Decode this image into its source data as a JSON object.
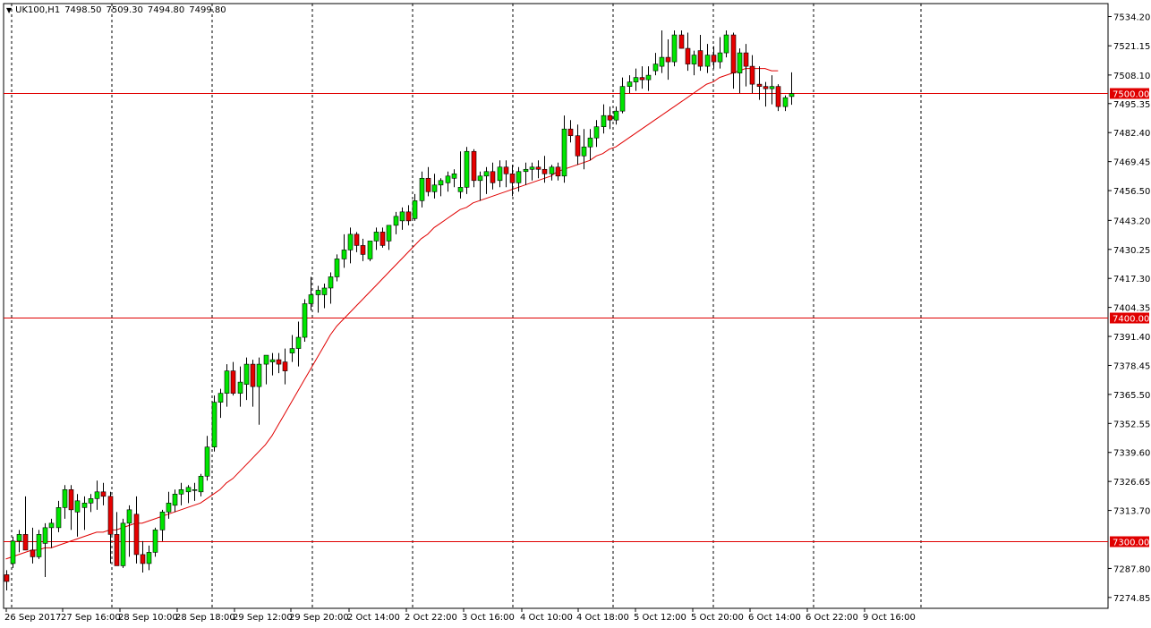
{
  "header": {
    "symbol_timeframe": "UK100,H1",
    "ohlc": [
      "7498.50",
      "7509.30",
      "7494.80",
      "7499.80"
    ]
  },
  "colors": {
    "background": "#ffffff",
    "bull": "#00e600",
    "bear": "#e60000",
    "candle_outline": "#000000",
    "moving_average": "#e00000",
    "hline": "#e00000",
    "hline_label_bg": "#e00000",
    "hline_label_text": "#ffffff",
    "grid": "#000000"
  },
  "price_axis": {
    "ticks": [
      "7534.20",
      "7521.15",
      "7508.10",
      "7495.35",
      "7482.40",
      "7469.45",
      "7456.50",
      "7443.20",
      "7430.25",
      "7417.30",
      "7404.35",
      "7391.40",
      "7378.45",
      "7365.50",
      "7352.55",
      "7339.60",
      "7326.65",
      "7313.70",
      "7287.80",
      "7274.85"
    ]
  },
  "time_axis": {
    "labels": [
      "26 Sep 2017",
      "27 Sep 16:00",
      "28 Sep 10:00",
      "28 Sep 18:00",
      "29 Sep 12:00",
      "29 Sep 20:00",
      "2 Oct 14:00",
      "2 Oct 22:00",
      "3 Oct 16:00",
      "4 Oct 10:00",
      "4 Oct 18:00",
      "5 Oct 12:00",
      "5 Oct 20:00",
      "6 Oct 14:00",
      "6 Oct 22:00",
      "9 Oct 16:00"
    ]
  },
  "chart_data": {
    "type": "candlestick",
    "symbol": "UK100",
    "timeframe": "H1",
    "ylim": [
      7270,
      7540
    ],
    "horizontal_levels": [
      "7500.00",
      "7400.00",
      "7300.00"
    ],
    "candles": [
      [
        7285,
        7287,
        7278,
        7282
      ],
      [
        7290,
        7302,
        7288,
        7300
      ],
      [
        7300,
        7305,
        7295,
        7303
      ],
      [
        7303,
        7320,
        7296,
        7296
      ],
      [
        7296,
        7306,
        7290,
        7293
      ],
      [
        7293,
        7305,
        7292,
        7303
      ],
      [
        7299,
        7308,
        7284,
        7306
      ],
      [
        7306,
        7310,
        7297,
        7308
      ],
      [
        7306,
        7318,
        7304,
        7315
      ],
      [
        7315,
        7325,
        7310,
        7323
      ],
      [
        7323,
        7325,
        7305,
        7314
      ],
      [
        7313,
        7321,
        7302,
        7318
      ],
      [
        7315,
        7320,
        7305,
        7317
      ],
      [
        7317,
        7321,
        7313,
        7319
      ],
      [
        7319,
        7327,
        7314,
        7322
      ],
      [
        7322,
        7326,
        7316,
        7320
      ],
      [
        7320,
        7322,
        7290,
        7303
      ],
      [
        7303,
        7313,
        7290,
        7289
      ],
      [
        7289,
        7310,
        7288,
        7308
      ],
      [
        7308,
        7316,
        7293,
        7314
      ],
      [
        7312,
        7320,
        7290,
        7294
      ],
      [
        7294,
        7300,
        7286,
        7290
      ],
      [
        7290,
        7298,
        7287,
        7295
      ],
      [
        7295,
        7306,
        7293,
        7305
      ],
      [
        7305,
        7314,
        7300,
        7313
      ],
      [
        7313,
        7322,
        7310,
        7317
      ],
      [
        7316,
        7323,
        7313,
        7321
      ],
      [
        7321,
        7326,
        7316,
        7323
      ],
      [
        7322,
        7325,
        7317,
        7324
      ],
      [
        7323,
        7326,
        7318,
        7323
      ],
      [
        7322,
        7330,
        7320,
        7329
      ],
      [
        7329,
        7347,
        7327,
        7342
      ],
      [
        7342,
        7365,
        7340,
        7362
      ],
      [
        7362,
        7368,
        7355,
        7366
      ],
      [
        7366,
        7379,
        7360,
        7376
      ],
      [
        7376,
        7380,
        7365,
        7366
      ],
      [
        7366,
        7378,
        7360,
        7371
      ],
      [
        7370,
        7382,
        7363,
        7379
      ],
      [
        7379,
        7381,
        7360,
        7369
      ],
      [
        7369,
        7382,
        7352,
        7379
      ],
      [
        7379,
        7382,
        7370,
        7383
      ],
      [
        7380,
        7384,
        7374,
        7381
      ],
      [
        7381,
        7384,
        7375,
        7379
      ],
      [
        7380,
        7386,
        7370,
        7376
      ],
      [
        7384,
        7392,
        7380,
        7386
      ],
      [
        7386,
        7398,
        7378,
        7391
      ],
      [
        7391,
        7408,
        7389,
        7406
      ],
      [
        7406,
        7418,
        7403,
        7410
      ],
      [
        7410,
        7414,
        7402,
        7412
      ],
      [
        7410,
        7415,
        7404,
        7413
      ],
      [
        7413,
        7420,
        7406,
        7418
      ],
      [
        7418,
        7428,
        7416,
        7426
      ],
      [
        7426,
        7437,
        7422,
        7430
      ],
      [
        7430,
        7440,
        7424,
        7437
      ],
      [
        7437,
        7438,
        7429,
        7432
      ],
      [
        7432,
        7435,
        7425,
        7428
      ],
      [
        7426,
        7434,
        7425,
        7434
      ],
      [
        7434,
        7440,
        7430,
        7438
      ],
      [
        7438,
        7440,
        7431,
        7432
      ],
      [
        7434,
        7441,
        7430,
        7441
      ],
      [
        7441,
        7447,
        7437,
        7445
      ],
      [
        7443,
        7449,
        7439,
        7447
      ],
      [
        7447,
        7450,
        7441,
        7443
      ],
      [
        7444,
        7455,
        7443,
        7452
      ],
      [
        7452,
        7465,
        7449,
        7462
      ],
      [
        7462,
        7467,
        7454,
        7456
      ],
      [
        7456,
        7464,
        7453,
        7459
      ],
      [
        7459,
        7462,
        7454,
        7461
      ],
      [
        7460,
        7465,
        7456,
        7463
      ],
      [
        7462,
        7466,
        7458,
        7464
      ],
      [
        7456,
        7474,
        7453,
        7458
      ],
      [
        7458,
        7476,
        7455,
        7474
      ],
      [
        7474,
        7475,
        7458,
        7461
      ],
      [
        7461,
        7465,
        7452,
        7463
      ],
      [
        7463,
        7467,
        7455,
        7465
      ],
      [
        7465,
        7469,
        7457,
        7460
      ],
      [
        7461,
        7470,
        7458,
        7467
      ],
      [
        7467,
        7470,
        7458,
        7464
      ],
      [
        7464,
        7468,
        7454,
        7460
      ],
      [
        7460,
        7467,
        7456,
        7465
      ],
      [
        7465,
        7469,
        7459,
        7466
      ],
      [
        7466,
        7469,
        7461,
        7467
      ],
      [
        7467,
        7470,
        7462,
        7466
      ],
      [
        7466,
        7472,
        7460,
        7464
      ],
      [
        7464,
        7468,
        7461,
        7467
      ],
      [
        7467,
        7469,
        7461,
        7463
      ],
      [
        7463,
        7490,
        7460,
        7484
      ],
      [
        7484,
        7488,
        7478,
        7481
      ],
      [
        7481,
        7486,
        7468,
        7472
      ],
      [
        7472,
        7484,
        7466,
        7476
      ],
      [
        7476,
        7484,
        7470,
        7480
      ],
      [
        7480,
        7488,
        7476,
        7485
      ],
      [
        7485,
        7495,
        7482,
        7490
      ],
      [
        7490,
        7494,
        7484,
        7488
      ],
      [
        7488,
        7494,
        7486,
        7492
      ],
      [
        7492,
        7507,
        7491,
        7503
      ],
      [
        7503,
        7508,
        7500,
        7505
      ],
      [
        7505,
        7511,
        7501,
        7507
      ],
      [
        7507,
        7512,
        7502,
        7506
      ],
      [
        7506,
        7512,
        7501,
        7508
      ],
      [
        7510,
        7518,
        7508,
        7513
      ],
      [
        7512,
        7528,
        7509,
        7516
      ],
      [
        7516,
        7524,
        7506,
        7514
      ],
      [
        7514,
        7528,
        7512,
        7526
      ],
      [
        7526,
        7528,
        7520,
        7520
      ],
      [
        7520,
        7527,
        7510,
        7513
      ],
      [
        7513,
        7519,
        7508,
        7517
      ],
      [
        7519,
        7526,
        7510,
        7512
      ],
      [
        7512,
        7522,
        7509,
        7517
      ],
      [
        7517,
        7521,
        7511,
        7514
      ],
      [
        7514,
        7525,
        7511,
        7518
      ],
      [
        7518,
        7528,
        7516,
        7526
      ],
      [
        7526,
        7527,
        7502,
        7509
      ],
      [
        7509,
        7520,
        7500,
        7518
      ],
      [
        7518,
        7522,
        7503,
        7512
      ],
      [
        7512,
        7517,
        7500,
        7504
      ],
      [
        7504,
        7512,
        7497,
        7503
      ],
      [
        7503,
        7505,
        7494,
        7502
      ],
      [
        7502,
        7508,
        7495,
        7503
      ],
      [
        7503,
        7504,
        7492,
        7494
      ],
      [
        7494,
        7499,
        7492,
        7498
      ],
      [
        7498.5,
        7509.3,
        7494.8,
        7499.8
      ]
    ],
    "moving_average": [
      7292,
      7293,
      7294,
      7295,
      7296,
      7296,
      7297,
      7297,
      7298,
      7299,
      7300,
      7301,
      7302,
      7303,
      7304,
      7304,
      7305,
      7305,
      7306,
      7307,
      7308,
      7308,
      7309,
      7310,
      7311,
      7312,
      7313,
      7314,
      7315,
      7316,
      7317,
      7319,
      7321,
      7323,
      7326,
      7328,
      7331,
      7334,
      7337,
      7340,
      7343,
      7347,
      7352,
      7357,
      7362,
      7367,
      7372,
      7377,
      7382,
      7387,
      7392,
      7396,
      7399,
      7402,
      7405,
      7408,
      7411,
      7414,
      7417,
      7420,
      7423,
      7426,
      7429,
      7432,
      7435,
      7437,
      7440,
      7442,
      7444,
      7446,
      7448,
      7449,
      7451,
      7452,
      7453,
      7454,
      7455,
      7456,
      7457,
      7458,
      7459,
      7460,
      7461,
      7462,
      7463,
      7465,
      7466,
      7467,
      7468,
      7469,
      7470,
      7472,
      7473,
      7475,
      7476,
      7478,
      7480,
      7482,
      7484,
      7486,
      7488,
      7490,
      7492,
      7494,
      7496,
      7498,
      7500,
      7502,
      7504,
      7505,
      7507,
      7508,
      7509,
      7510,
      7511,
      7511,
      7511,
      7511,
      7510,
      7510
    ]
  }
}
